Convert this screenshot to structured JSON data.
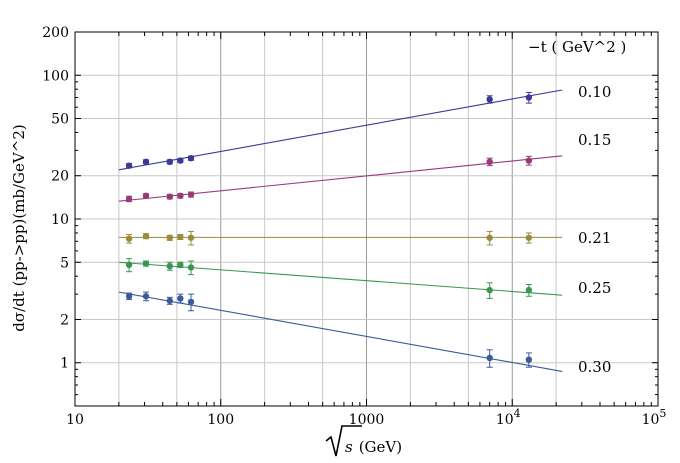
{
  "chart_data": {
    "type": "scatter",
    "title": "",
    "xlabel": "√s (GeV)",
    "ylabel": "dσ/dt (pp->pp)(mb/GeV^2)",
    "xscale": "log",
    "yscale": "log",
    "xlim": [
      10,
      100000
    ],
    "ylim": [
      0.5,
      200
    ],
    "grid": true,
    "x_ticks": [
      {
        "value": 10,
        "label": "10"
      },
      {
        "value": 100,
        "label": "100"
      },
      {
        "value": 1000,
        "label": "1000"
      },
      {
        "value": 10000,
        "label": "10",
        "sup": "4"
      },
      {
        "value": 100000,
        "label": "10",
        "sup": "5"
      }
    ],
    "y_ticks": [
      {
        "value": 1,
        "label": "1"
      },
      {
        "value": 2,
        "label": "2"
      },
      {
        "value": 5,
        "label": "5"
      },
      {
        "value": 10,
        "label": "10"
      },
      {
        "value": 20,
        "label": "20"
      },
      {
        "value": 50,
        "label": "50"
      },
      {
        "value": 100,
        "label": "100"
      },
      {
        "value": 200,
        "label": "200"
      }
    ],
    "legend_title": "−t ( GeV^2 )",
    "legend_placement": "right",
    "series": [
      {
        "name": "0.10",
        "color": "#3a3a96",
        "marker": "circle",
        "points": [
          {
            "x": 23.5,
            "y": 23.5,
            "err": 0.8
          },
          {
            "x": 30.7,
            "y": 25.0,
            "err": 0.8
          },
          {
            "x": 44.7,
            "y": 25.0,
            "err": 0.8
          },
          {
            "x": 52.8,
            "y": 25.5,
            "err": 0.8
          },
          {
            "x": 62.5,
            "y": 26.5,
            "err": 0.9
          },
          {
            "x": 7000,
            "y": 68,
            "err": 4
          },
          {
            "x": 13000,
            "y": 70,
            "err": 6
          }
        ],
        "fit": {
          "x0": 20,
          "y0": 22,
          "x1": 22000,
          "y1": 79
        }
      },
      {
        "name": "0.15",
        "color": "#963a78",
        "marker": "circle",
        "points": [
          {
            "x": 23.5,
            "y": 13.8,
            "err": 0.6
          },
          {
            "x": 30.7,
            "y": 14.5,
            "err": 0.5
          },
          {
            "x": 44.7,
            "y": 14.3,
            "err": 0.5
          },
          {
            "x": 52.8,
            "y": 14.5,
            "err": 0.5
          },
          {
            "x": 62.5,
            "y": 14.8,
            "err": 0.6
          },
          {
            "x": 7000,
            "y": 25,
            "err": 1.5
          },
          {
            "x": 13000,
            "y": 25.5,
            "err": 1.8
          }
        ],
        "fit": {
          "x0": 20,
          "y0": 13.3,
          "x1": 22000,
          "y1": 27.5
        }
      },
      {
        "name": "0.21",
        "color": "#9a8a3a",
        "marker": "circle",
        "points": [
          {
            "x": 23.5,
            "y": 7.3,
            "err": 0.5
          },
          {
            "x": 30.7,
            "y": 7.6,
            "err": 0.3
          },
          {
            "x": 44.7,
            "y": 7.4,
            "err": 0.3
          },
          {
            "x": 52.8,
            "y": 7.5,
            "err": 0.3
          },
          {
            "x": 62.5,
            "y": 7.4,
            "err": 0.8
          },
          {
            "x": 7000,
            "y": 7.4,
            "err": 0.8
          },
          {
            "x": 13000,
            "y": 7.4,
            "err": 0.6
          }
        ],
        "fit": {
          "x0": 20,
          "y0": 7.45,
          "x1": 22000,
          "y1": 7.45
        }
      },
      {
        "name": "0.25",
        "color": "#3a9650",
        "marker": "circle",
        "points": [
          {
            "x": 23.5,
            "y": 4.8,
            "err": 0.5
          },
          {
            "x": 30.7,
            "y": 4.9,
            "err": 0.2
          },
          {
            "x": 44.7,
            "y": 4.7,
            "err": 0.3
          },
          {
            "x": 52.8,
            "y": 4.8,
            "err": 0.2
          },
          {
            "x": 62.5,
            "y": 4.6,
            "err": 0.5
          },
          {
            "x": 7000,
            "y": 3.2,
            "err": 0.4
          },
          {
            "x": 13000,
            "y": 3.2,
            "err": 0.3
          }
        ],
        "fit": {
          "x0": 20,
          "y0": 5.0,
          "x1": 22000,
          "y1": 2.95
        }
      },
      {
        "name": "0.30",
        "color": "#3a5a9a",
        "marker": "circle",
        "points": [
          {
            "x": 23.5,
            "y": 2.9,
            "err": 0.15
          },
          {
            "x": 30.7,
            "y": 2.9,
            "err": 0.2
          },
          {
            "x": 44.7,
            "y": 2.7,
            "err": 0.15
          },
          {
            "x": 52.8,
            "y": 2.8,
            "err": 0.2
          },
          {
            "x": 62.5,
            "y": 2.65,
            "err": 0.35
          },
          {
            "x": 7000,
            "y": 1.08,
            "err": 0.15
          },
          {
            "x": 13000,
            "y": 1.05,
            "err": 0.12
          }
        ],
        "fit": {
          "x0": 20,
          "y0": 3.1,
          "x1": 22000,
          "y1": 0.87
        }
      }
    ]
  }
}
